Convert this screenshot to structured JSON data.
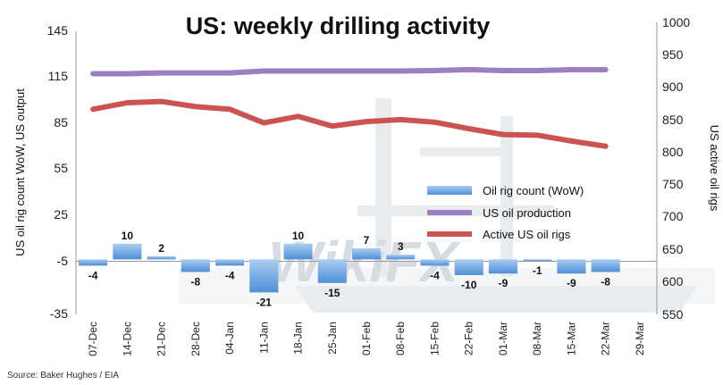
{
  "chart_data": {
    "type": "bar+line",
    "title": "US: weekly drilling activity",
    "ylabel_left": "US oil rig count WoW, US output",
    "ylabel_right": "US active oil rigs",
    "left_ticks": [
      "145",
      "115",
      "85",
      "55",
      "25",
      "-5",
      "-35"
    ],
    "right_ticks": [
      "1000",
      "950",
      "900",
      "850",
      "800",
      "750",
      "700",
      "650",
      "600",
      "550"
    ],
    "ylim_left": [
      -35,
      145
    ],
    "ylim_right": [
      550,
      1000
    ],
    "categories": [
      "07-Dec",
      "14-Dec",
      "21-Dec",
      "28-Dec",
      "04-Jan",
      "11-Jan",
      "18-Jan",
      "25-Jan",
      "01-Feb",
      "08-Feb",
      "15-Feb",
      "22-Feb",
      "01-Mar",
      "08-Mar",
      "15-Mar",
      "22-Mar",
      "29-Mar"
    ],
    "series": [
      {
        "name": "Oil rig count (WoW)",
        "type": "bar",
        "axis": "left",
        "color": "#5a9be0",
        "values": [
          -4,
          10,
          2,
          -8,
          -4,
          -21,
          10,
          -15,
          7,
          3,
          -4,
          -10,
          -9,
          -1,
          -9,
          -8,
          null
        ],
        "labels": [
          "-4",
          "10",
          "2",
          "-8",
          "-4",
          "-21",
          "10",
          "-15",
          "7",
          "3",
          "-4",
          "-10",
          "-9",
          "-1",
          "-9",
          "-8",
          ""
        ]
      },
      {
        "name": "US oil production",
        "type": "line",
        "axis": "left",
        "color": "#9b7fc0",
        "values": [
          118.0,
          118.0,
          118.5,
          118.5,
          118.5,
          119.7,
          119.7,
          119.7,
          119.7,
          119.7,
          120.0,
          120.6,
          120.0,
          120.0,
          120.6,
          120.6,
          null
        ]
      },
      {
        "name": "Active US oil rigs",
        "type": "line",
        "axis": "right",
        "color": "#cc5450",
        "values": [
          873,
          883,
          885,
          877,
          873,
          852,
          862,
          847,
          854,
          857,
          853,
          843,
          834,
          833,
          824,
          816,
          null
        ]
      }
    ],
    "legend": {
      "position": "center-right",
      "entries": [
        "Oil rig count (WoW)",
        "US oil production",
        "Active US oil rigs"
      ]
    },
    "source": "Source: Baker Hughes / EIA"
  },
  "watermark": "WikiFX"
}
